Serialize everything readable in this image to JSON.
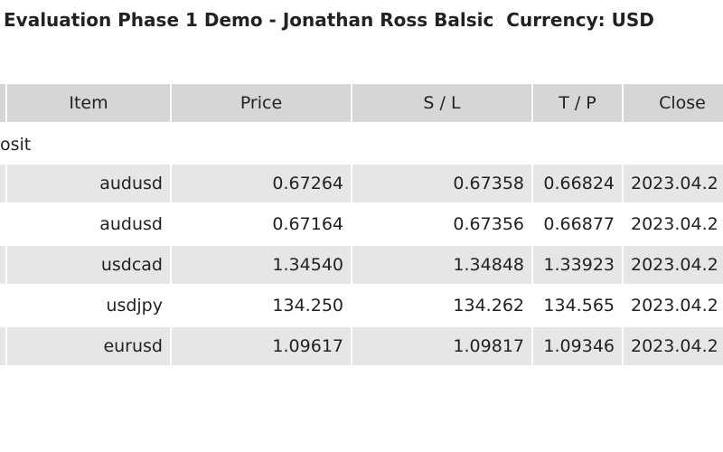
{
  "header": {
    "title": "Evaluation Phase 1 Demo - Jonathan Ross Balsic  Currency: USD"
  },
  "table": {
    "columns": [
      "Item",
      "Price",
      "S / L",
      "T / P",
      "Close"
    ],
    "section_label": "osit",
    "rows": [
      [
        "audusd",
        "0.67264",
        "0.67358",
        "0.66824",
        "2023.04.2"
      ],
      [
        "audusd",
        "0.67164",
        "0.67356",
        "0.66877",
        "2023.04.2"
      ],
      [
        "usdcad",
        "1.34540",
        "1.34848",
        "1.33923",
        "2023.04.2"
      ],
      [
        "usdjpy",
        "134.250",
        "134.262",
        "134.565",
        "2023.04.2"
      ],
      [
        "eurusd",
        "1.09617",
        "1.09817",
        "1.09346",
        "2023.04.2"
      ]
    ]
  }
}
